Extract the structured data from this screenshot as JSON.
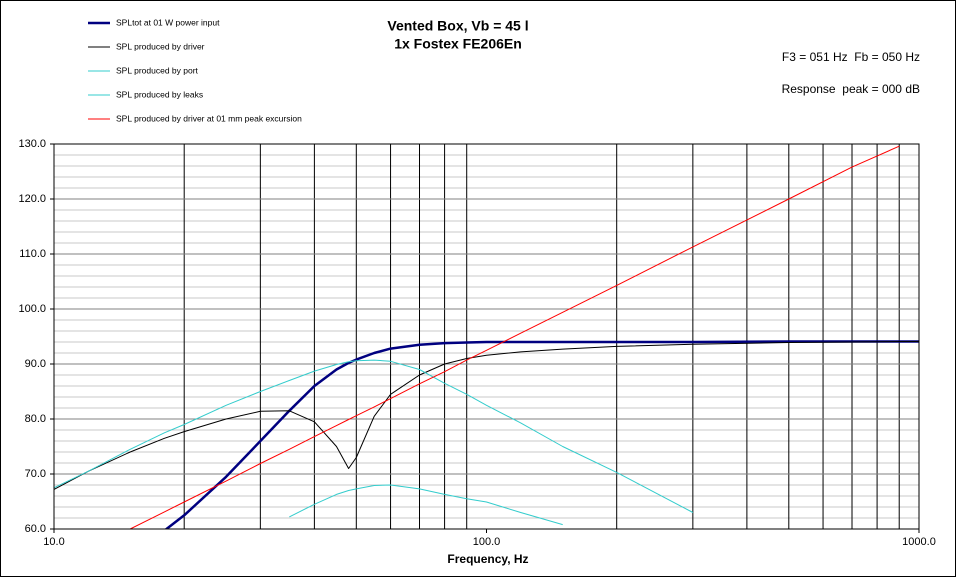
{
  "chart_data": {
    "type": "line",
    "title": "Vented Box, Vb = 45 l",
    "subtitle": "1x Fostex FE206En",
    "annotations": [
      "F3 = 051 Hz  Fb = 050 Hz",
      "Response  peak = 000 dB"
    ],
    "x_label": "Frequency, Hz",
    "x_scale": "log",
    "legend": "top-left",
    "x": [
      10,
      12,
      15,
      18,
      20,
      25,
      30,
      35,
      40,
      45,
      48,
      50,
      55,
      60,
      70,
      80,
      90,
      100,
      120,
      150,
      200,
      300,
      500,
      700,
      900,
      1000
    ],
    "series": [
      {
        "name": "SPLtot at 01 W power input",
        "color": "#000080",
        "width": 2.5,
        "values": [
          null,
          null,
          null,
          59.7,
          62.5,
          69.5,
          76,
          81.5,
          86,
          89,
          90.2,
          90.8,
          92,
          92.8,
          93.5,
          93.8,
          93.9,
          94,
          94,
          94,
          94,
          94,
          94.1,
          94.1,
          94.1,
          94.1
        ]
      },
      {
        "name": "SPL produced by driver",
        "color": "#000000",
        "width": 1,
        "values": [
          67.2,
          70.5,
          74,
          76.5,
          77.7,
          80,
          81.4,
          81.5,
          79.5,
          75,
          71,
          73,
          80.5,
          84.5,
          88,
          90,
          91,
          91.6,
          92.2,
          92.7,
          93.2,
          93.6,
          93.9,
          94,
          94.1,
          94.1
        ]
      },
      {
        "name": "SPL produced by port",
        "color": "#33cccc",
        "width": 1,
        "values": [
          null,
          null,
          null,
          null,
          null,
          null,
          null,
          62.2,
          64.5,
          66.3,
          67,
          67.3,
          67.9,
          68,
          67.3,
          66.3,
          65.5,
          64.9,
          63,
          60.8,
          null,
          null,
          null,
          null,
          null,
          null
        ]
      },
      {
        "name": "SPL produced by leaks",
        "color": "#33cccc",
        "width": 1,
        "values": [
          67.5,
          70.5,
          74.5,
          77.5,
          79,
          82.5,
          85,
          87,
          88.7,
          89.9,
          90.4,
          90.6,
          90.7,
          90.5,
          89,
          86.5,
          84.5,
          82.5,
          79.3,
          75,
          70.3,
          63,
          null,
          null,
          null,
          null
        ]
      },
      {
        "name": "SPL produced by driver at 01 mm peak excursion",
        "color": "#ff0000",
        "width": 1,
        "values": [
          null,
          null,
          60,
          63.1,
          64.9,
          68.7,
          71.9,
          74.5,
          76.8,
          78.8,
          79.9,
          80.6,
          82.2,
          83.7,
          86.4,
          88.6,
          90.7,
          92.5,
          95.6,
          99.4,
          104.3,
          111.3,
          120,
          125.8,
          129.6,
          null
        ]
      }
    ],
    "xlim": [
      10,
      1000
    ],
    "xticks": [
      {
        "value": 10,
        "label": "10.0"
      },
      {
        "value": 100,
        "label": "100.0"
      },
      {
        "value": 1000,
        "label": "1000.0"
      }
    ],
    "xgrid": [
      20,
      30,
      40,
      50,
      60,
      70,
      80,
      90,
      200,
      300,
      400,
      500,
      600,
      700,
      800,
      900
    ],
    "ylim": [
      60,
      130
    ],
    "yticks": [
      {
        "value": 60,
        "label": "60.0"
      },
      {
        "value": 70,
        "label": "70.0"
      },
      {
        "value": 80,
        "label": "80.0"
      },
      {
        "value": 90,
        "label": "90.0"
      },
      {
        "value": 100,
        "label": "100.0"
      },
      {
        "value": 110,
        "label": "110.0"
      },
      {
        "value": 120,
        "label": "120.0"
      },
      {
        "value": 130,
        "label": "130.0"
      }
    ],
    "ygrid": [
      62,
      64,
      66,
      68,
      72,
      74,
      76,
      78,
      82,
      84,
      86,
      88,
      92,
      94,
      96,
      98,
      102,
      104,
      106,
      108,
      112,
      114,
      116,
      118,
      122,
      124,
      126,
      128
    ],
    "grid": true
  }
}
